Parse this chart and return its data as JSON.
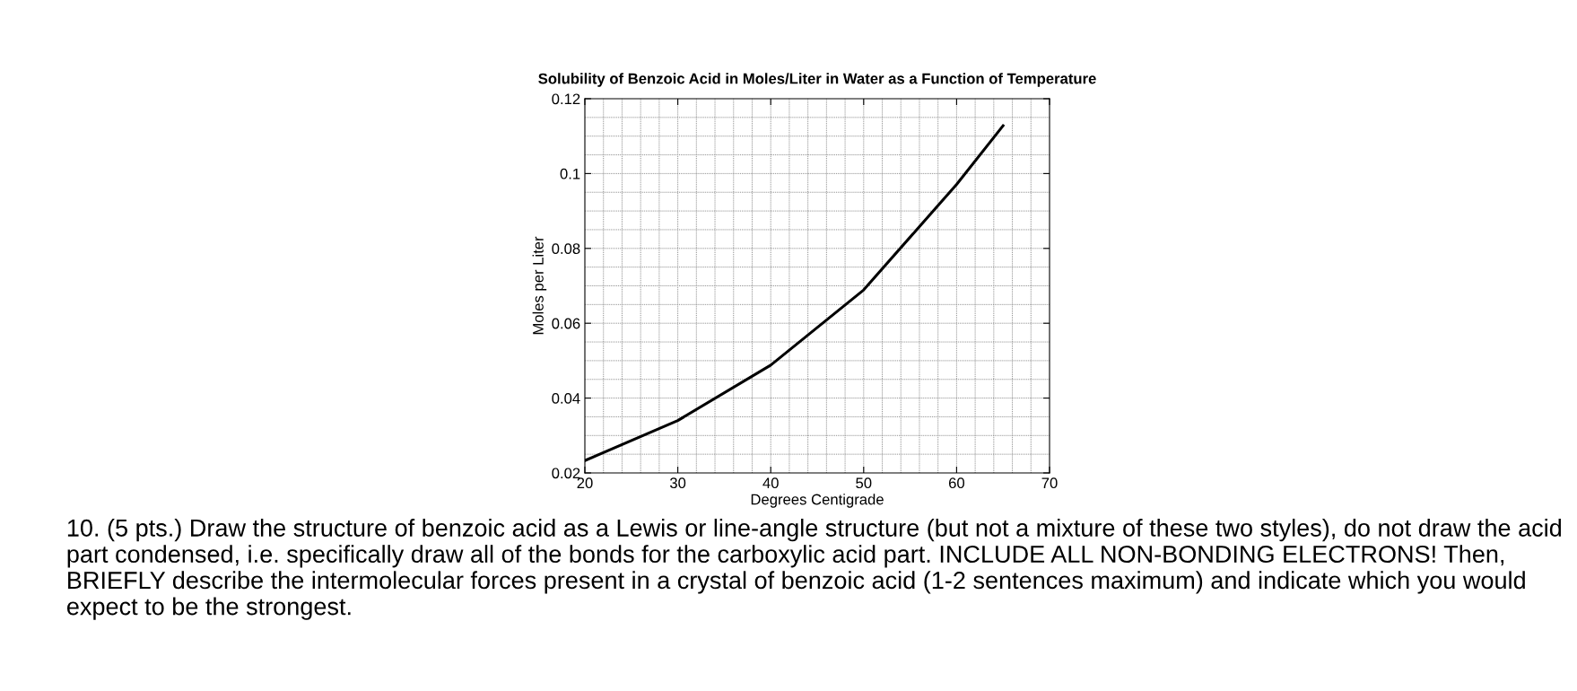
{
  "chart_data": {
    "type": "line",
    "title": "Solubility of Benzoic Acid in Moles/Liter in Water as a Function of Temperature",
    "xlabel": "Degrees Centigrade",
    "ylabel": "Moles per Liter",
    "x": [
      20,
      30,
      40,
      50,
      60,
      65
    ],
    "series": [
      {
        "color": "#000000",
        "values": [
          0.0233,
          0.034,
          0.0488,
          0.0689,
          0.0971,
          0.1128
        ]
      }
    ],
    "xlim": [
      20,
      70
    ],
    "xticks": [
      20,
      30,
      40,
      50,
      60,
      70
    ],
    "ylim": [
      0.02,
      0.12
    ],
    "yticks": [
      {
        "value": 0.02,
        "label": "0.02"
      },
      {
        "value": 0.04,
        "label": "0.04"
      },
      {
        "value": 0.06,
        "label": "0.06"
      },
      {
        "value": 0.08,
        "label": "0.08"
      },
      {
        "value": 0.1,
        "label": "0.1"
      },
      {
        "value": 0.12,
        "label": "0.12"
      }
    ],
    "grid": true,
    "marker": "none",
    "line_style": "solid",
    "annotations": [
      "10. (5 pts.) Draw the structure of benzoic acid as a Lewis or line-angle structure (but not a mixture of these two styles), do not draw the acid part condensed, i.e. specifically draw all of the bonds for the carboxylic acid part. INCLUDE ALL NON-BONDING ELECTRONS! Then, BRIEFLY describe the intermolecular forces present in a crystal of benzoic acid (1-2 sentences maximum) and indicate which you would expect to be the strongest."
    ]
  }
}
